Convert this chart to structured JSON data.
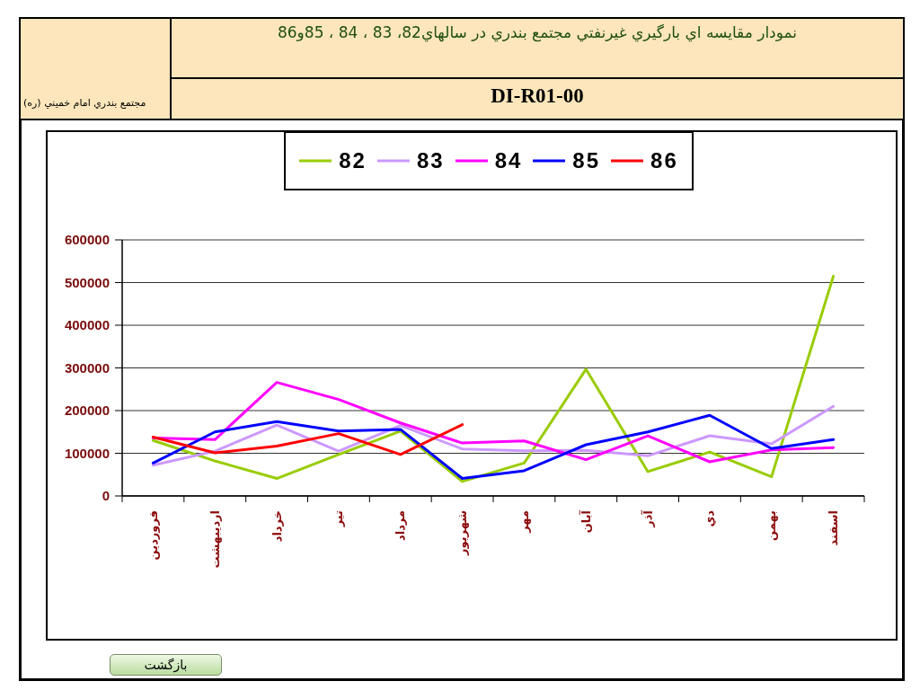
{
  "chart_data": {
    "type": "line",
    "title": "نمودار مقايسه اي بارگيري غيرنفتي مجتمع بندري در سالهاي82، 83 ، 84 ، 85و86",
    "subtitle": "DI-R01-00",
    "annotations": [
      "مجتمع بندري امام خميني (ره)",
      "بازگشت"
    ],
    "categories": [
      "فروردين",
      "ارديبهشت",
      "خرداد",
      "تير",
      "مرداد",
      "شهريور",
      "مهر",
      "آبان",
      "آذر",
      "دي",
      "بهمن",
      "اسفند"
    ],
    "series": [
      {
        "name": "82",
        "color": "#99cc00",
        "values": [
          130000,
          82000,
          41000,
          97000,
          152000,
          34000,
          77000,
          297000,
          57000,
          103000,
          45000,
          515000
        ]
      },
      {
        "name": "83",
        "color": "#cc99ff",
        "values": [
          72000,
          105000,
          166000,
          105000,
          165000,
          110000,
          106000,
          107000,
          94000,
          141000,
          122000,
          210000
        ]
      },
      {
        "name": "84",
        "color": "#ff00ff",
        "values": [
          136000,
          132000,
          266000,
          226000,
          171000,
          124000,
          129000,
          85000,
          141000,
          80000,
          108000,
          113000
        ]
      },
      {
        "name": "85",
        "color": "#0000ff",
        "values": [
          77000,
          150000,
          174000,
          152000,
          156000,
          41000,
          59000,
          120000,
          150000,
          189000,
          111000,
          132000
        ]
      },
      {
        "name": "86",
        "color": "#ff0000",
        "values": [
          138000,
          101000,
          117000,
          146000,
          97000,
          167000,
          null,
          null,
          null,
          null,
          null,
          null
        ]
      }
    ],
    "ylim": [
      0,
      600000
    ],
    "yticks": [
      0,
      100000,
      200000,
      300000,
      400000,
      500000,
      600000
    ],
    "grid": "y",
    "legend": "top",
    "line_style": "solid"
  }
}
